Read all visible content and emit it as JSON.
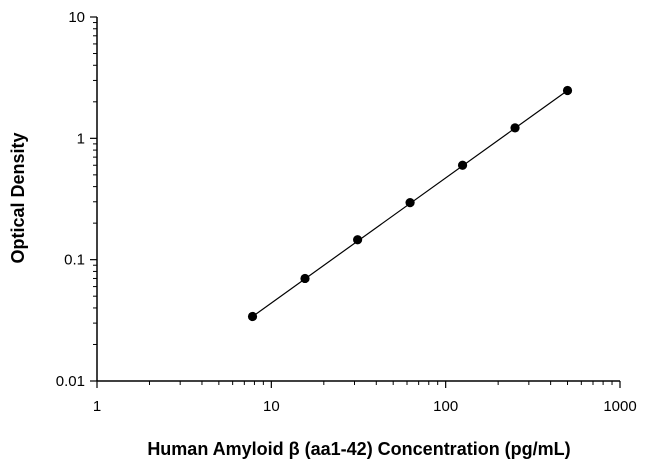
{
  "chart_data": {
    "type": "scatter",
    "title": "",
    "xlabel": "Human Amyloid β (aa1-42) Concentration (pg/mL)",
    "ylabel": "Optical Density",
    "x_scale": "log",
    "y_scale": "log",
    "xlim": [
      1,
      1000
    ],
    "ylim": [
      0.01,
      10
    ],
    "x_ticks": [
      1,
      10,
      100,
      1000
    ],
    "x_tick_labels": [
      "1",
      "10",
      "100",
      "1000"
    ],
    "y_ticks": [
      0.01,
      0.1,
      1,
      10
    ],
    "y_tick_labels": [
      "0.01",
      "0.1",
      "1",
      "10"
    ],
    "grid": false,
    "legend": "none",
    "marker_color": "#000000",
    "line_color": "#000000",
    "fit_line": "linear fit through points",
    "series": [
      {
        "x": [
          7.8,
          15.6,
          31.25,
          62.5,
          125,
          250,
          500
        ],
        "y": [
          0.034,
          0.07,
          0.146,
          0.295,
          0.6,
          1.22,
          2.48
        ]
      }
    ]
  }
}
